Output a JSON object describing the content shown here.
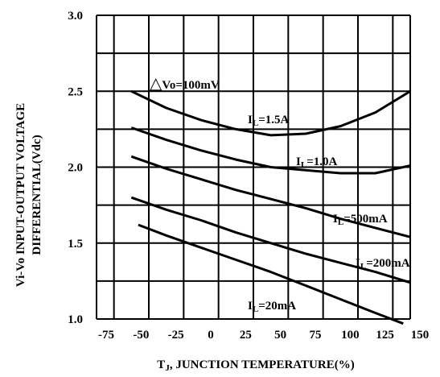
{
  "chart_data": {
    "type": "line",
    "title": "",
    "xlabel": {
      "main": "T",
      "sub": "J",
      "rest": ", JUNCTION TEMPERATURE(%)"
    },
    "ylabel": [
      "Vi-Vo INPUT-OUTPUT VOLTAGE",
      "DIFFERENTIAL(Vdc)"
    ],
    "xlim": [
      -75,
      150
    ],
    "ylim": [
      1.0,
      3.0
    ],
    "xticks": [
      "-75",
      "-50",
      "-25",
      "0",
      "25",
      "50",
      "75",
      "100",
      "125",
      "150"
    ],
    "yticks": [
      "1.0",
      "1.5",
      "2.0",
      "2.5",
      "3.0"
    ],
    "grid": true,
    "annotation": {
      "symbol": "△",
      "text": "Vo=100mV"
    },
    "series": [
      {
        "name": "IL=1.5A",
        "label_main": "I",
        "label_sub": "L",
        "label_rest": "=1.5A",
        "x": [
          -50,
          -25,
          0,
          25,
          50,
          75,
          100,
          125,
          150
        ],
        "y": [
          2.5,
          2.39,
          2.31,
          2.25,
          2.21,
          2.22,
          2.27,
          2.36,
          2.5
        ]
      },
      {
        "name": "IL=1.0A",
        "label_main": "I",
        "label_sub": "L",
        "label_rest": "=1.0A",
        "x": [
          -50,
          -25,
          0,
          25,
          50,
          75,
          100,
          125,
          150
        ],
        "y": [
          2.26,
          2.18,
          2.11,
          2.05,
          2.0,
          1.98,
          1.96,
          1.96,
          2.01
        ]
      },
      {
        "name": "IL=500mA",
        "label_main": "I",
        "label_sub": "L",
        "label_rest": "=500mA",
        "x": [
          -50,
          -25,
          0,
          25,
          50,
          75,
          100,
          125,
          150
        ],
        "y": [
          2.07,
          1.99,
          1.92,
          1.85,
          1.79,
          1.73,
          1.66,
          1.6,
          1.54
        ]
      },
      {
        "name": "IL=200mA",
        "label_main": "I",
        "label_sub": "L",
        "label_rest": "=200mA",
        "x": [
          -50,
          -25,
          0,
          25,
          50,
          75,
          100,
          125,
          150
        ],
        "y": [
          1.8,
          1.72,
          1.65,
          1.57,
          1.5,
          1.43,
          1.37,
          1.31,
          1.24
        ]
      },
      {
        "name": "IL=20mA",
        "label_main": "I",
        "label_sub": "L",
        "label_rest": "=20mA",
        "x": [
          -45,
          -25,
          0,
          25,
          50,
          75,
          100,
          125,
          145
        ],
        "y": [
          1.62,
          1.55,
          1.47,
          1.39,
          1.31,
          1.22,
          1.13,
          1.04,
          0.97
        ]
      }
    ]
  }
}
